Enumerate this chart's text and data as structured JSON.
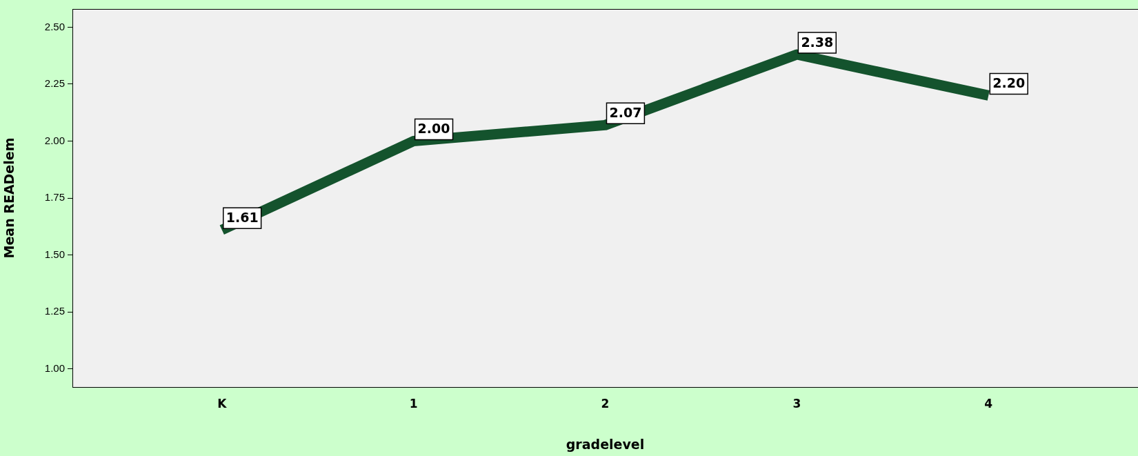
{
  "chart_data": {
    "type": "line",
    "xlabel": "gradelevel",
    "ylabel": "Mean READelem",
    "categories": [
      "K",
      "1",
      "2",
      "3",
      "4"
    ],
    "series": [
      {
        "color": "#14532d",
        "values": [
          1.61,
          2.0,
          2.07,
          2.38,
          2.2
        ],
        "value_labels": [
          "1.61",
          "2.00",
          "2.07",
          "2.38",
          "2.20"
        ]
      }
    ],
    "ylim": [
      0.92,
      2.58
    ],
    "yticks": [
      {
        "value": 1,
        "label": "1.00"
      },
      {
        "value": 1.25,
        "label": "1.25"
      },
      {
        "value": 1.5,
        "label": "1.50"
      },
      {
        "value": 1.75,
        "label": "1.75"
      },
      {
        "value": 2,
        "label": "2.00"
      },
      {
        "value": 2.25,
        "label": "2.25"
      },
      {
        "value": 2.5,
        "label": "2.50"
      }
    ],
    "grid": false,
    "legend": false,
    "marker": "none",
    "line_style": "solid"
  }
}
